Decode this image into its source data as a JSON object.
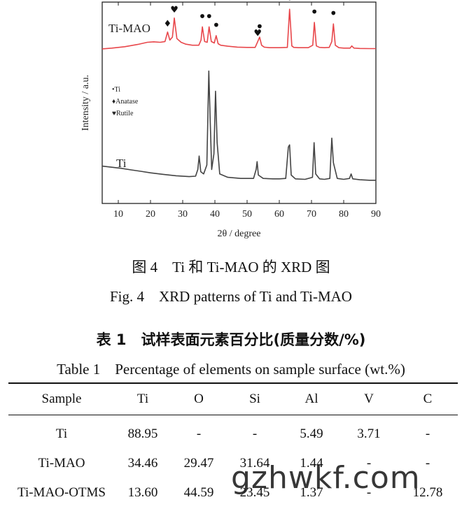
{
  "chart_data": {
    "type": "line",
    "xlabel": "2θ / degree",
    "ylabel": "Intensity / a.u.",
    "xlim": [
      5,
      90
    ],
    "xticks": [
      10,
      20,
      30,
      40,
      50,
      60,
      70,
      80,
      90
    ],
    "grid": false,
    "y_ticks_shown": false,
    "series": [
      {
        "name": "Ti-MAO",
        "color": "#e8474b",
        "x": [
          5,
          8,
          12,
          16,
          19,
          21,
          23,
          24.5,
          25.3,
          26,
          26.8,
          27.4,
          28.2,
          29.5,
          31,
          33,
          35,
          35.7,
          36.1,
          36.8,
          37.6,
          38.2,
          38.9,
          39.8,
          40.4,
          41,
          41.8,
          44,
          47,
          50,
          52.5,
          53.3,
          53.9,
          54.5,
          55.3,
          57,
          60,
          62.5,
          63.2,
          63.9,
          64.5,
          66,
          69,
          70.4,
          70.9,
          71.5,
          72.5,
          74,
          75.5,
          76.3,
          76.8,
          77.4,
          78.5,
          80,
          82,
          82.5,
          83.2,
          85,
          88,
          90
        ],
        "values": [
          0.1,
          0.15,
          0.25,
          0.4,
          0.55,
          0.58,
          0.55,
          0.6,
          1.25,
          0.7,
          0.9,
          2.2,
          0.8,
          0.55,
          0.42,
          0.35,
          0.35,
          0.7,
          1.6,
          0.6,
          0.55,
          1.6,
          0.6,
          0.5,
          1.0,
          0.45,
          0.35,
          0.28,
          0.22,
          0.2,
          0.2,
          0.6,
          0.9,
          0.35,
          0.22,
          0.18,
          0.18,
          0.2,
          2.8,
          0.3,
          0.2,
          0.18,
          0.18,
          0.35,
          1.9,
          0.3,
          0.2,
          0.18,
          0.2,
          0.6,
          1.8,
          0.35,
          0.18,
          0.15,
          0.15,
          0.3,
          0.15,
          0.13,
          0.12,
          0.12
        ]
      },
      {
        "name": "Ti",
        "color": "#444444",
        "x": [
          5,
          8,
          11,
          14,
          17,
          20,
          24,
          28,
          32,
          34,
          34.7,
          35.1,
          35.6,
          36.5,
          37.5,
          38.1,
          38.5,
          39,
          39.7,
          40.2,
          40.7,
          41.5,
          44,
          48,
          52,
          52.8,
          53.1,
          53.5,
          55,
          58,
          60,
          62,
          62.8,
          63.2,
          63.7,
          65,
          68,
          70.3,
          70.8,
          71.3,
          72.5,
          74,
          75.7,
          76.3,
          76.8,
          78,
          80,
          81.8,
          82.3,
          82.8,
          85,
          88,
          90
        ],
        "values": [
          0.95,
          0.9,
          0.85,
          0.78,
          0.72,
          0.65,
          0.58,
          0.52,
          0.48,
          0.5,
          0.8,
          1.4,
          0.7,
          0.6,
          1.0,
          5.2,
          3.2,
          0.8,
          1.5,
          4.3,
          2.0,
          0.6,
          0.45,
          0.4,
          0.4,
          0.8,
          1.15,
          0.55,
          0.4,
          0.38,
          0.38,
          0.4,
          1.8,
          1.9,
          0.55,
          0.38,
          0.36,
          0.45,
          2.0,
          0.6,
          0.38,
          0.36,
          0.4,
          2.2,
          1.1,
          0.4,
          0.36,
          0.4,
          0.6,
          0.38,
          0.34,
          0.32,
          0.32
        ]
      }
    ],
    "series_labels": [
      "Ti-MAO",
      "Ti"
    ],
    "legend": {
      "placement": "upper-left",
      "entries": [
        {
          "marker": "•",
          "label": "Ti"
        },
        {
          "marker": "♦",
          "label": "Anatase"
        },
        {
          "marker": "♥",
          "label": "Rutile"
        }
      ]
    },
    "peak_markers": [
      {
        "x": 25.3,
        "marker": "♦"
      },
      {
        "x": 27.4,
        "marker": "♥"
      },
      {
        "x": 36.1,
        "marker": "•"
      },
      {
        "x": 38.2,
        "marker": "•"
      },
      {
        "x": 40.4,
        "marker": "•"
      },
      {
        "x": 53.3,
        "marker": "♥"
      },
      {
        "x": 53.9,
        "marker": "•"
      },
      {
        "x": 63.2,
        "marker": "•"
      },
      {
        "x": 70.9,
        "marker": "•"
      },
      {
        "x": 76.8,
        "marker": "•"
      }
    ]
  },
  "captions": {
    "figure_zh": "图 4　Ti 和 Ti-MAO 的 XRD 图",
    "figure_en": "Fig. 4　XRD patterns of Ti and Ti-MAO"
  },
  "table": {
    "title_zh": "表 1　试样表面元素百分比(质量分数/%)",
    "title_en": "Table 1　Percentage of elements on sample surface (wt.%)",
    "headers": [
      "Sample",
      "Ti",
      "O",
      "Si",
      "Al",
      "V",
      "C"
    ],
    "rows": [
      [
        "Ti",
        "88.95",
        "-",
        "-",
        "5.49",
        "3.71",
        "-"
      ],
      [
        "Ti-MAO",
        "34.46",
        "29.47",
        "31.64",
        "1.44",
        "-",
        "-"
      ],
      [
        "Ti-MAO-OTMS",
        "13.60",
        "44.59",
        "23.45",
        "1.37",
        "-",
        "12.78"
      ]
    ]
  },
  "watermark": "gzhwkf.com"
}
